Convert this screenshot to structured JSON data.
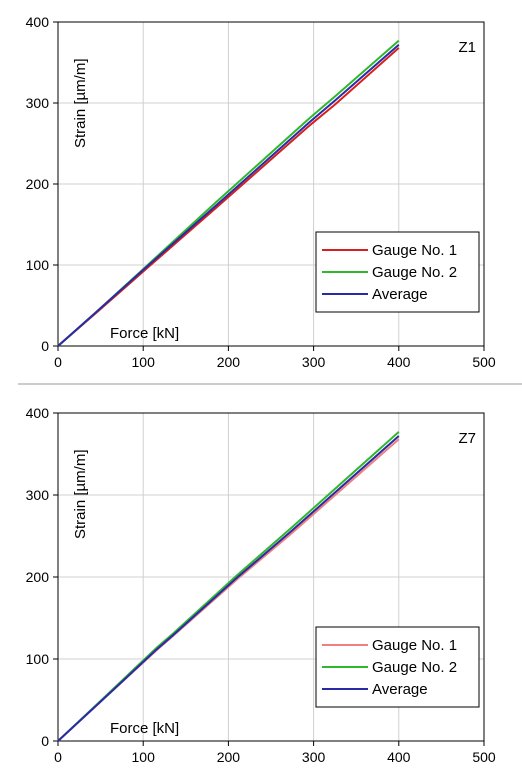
{
  "chart_data": [
    {
      "type": "line",
      "panel_label": "Z1",
      "xlabel": "Force [kN]",
      "ylabel": "Strain [µm/m]",
      "xlim": [
        0,
        500
      ],
      "ylim": [
        0,
        400
      ],
      "xticks": [
        "0",
        "100",
        "200",
        "300",
        "400",
        "500"
      ],
      "yticks": [
        "0",
        "100",
        "200",
        "300",
        "400"
      ],
      "grid": true,
      "legend_position": "bottom-right",
      "series": [
        {
          "name": "Gauge No. 1",
          "color": "#d62020",
          "x": [
            0,
            45,
            100,
            185,
            295,
            325,
            400
          ],
          "y": [
            0,
            41,
            92,
            170,
            272,
            298,
            368
          ]
        },
        {
          "name": "Gauge No. 2",
          "color": "#2db82d",
          "x": [
            0,
            45,
            100,
            185,
            295,
            325,
            400
          ],
          "y": [
            0,
            42,
            95,
            177,
            281,
            308,
            377
          ]
        },
        {
          "name": "Average",
          "color": "#2a2aa8",
          "x": [
            0,
            45,
            100,
            185,
            295,
            325,
            400
          ],
          "y": [
            0,
            42,
            94,
            173,
            276,
            303,
            372
          ]
        }
      ]
    },
    {
      "type": "line",
      "panel_label": "Z7",
      "xlabel": "Force [kN]",
      "ylabel": "Strain [µm/m]",
      "xlim": [
        0,
        500
      ],
      "ylim": [
        0,
        400
      ],
      "xticks": [
        "0",
        "100",
        "200",
        "300",
        "400",
        "500"
      ],
      "yticks": [
        "0",
        "100",
        "200",
        "300",
        "400"
      ],
      "grid": true,
      "legend_position": "bottom-right",
      "series": [
        {
          "name": "Gauge No. 1",
          "color": "#f08080",
          "x": [
            0,
            50,
            115,
            135,
            210,
            275,
            400
          ],
          "y": [
            0,
            48,
            110,
            128,
            197,
            254,
            368
          ]
        },
        {
          "name": "Gauge No. 2",
          "color": "#2db82d",
          "x": [
            0,
            50,
            115,
            135,
            210,
            275,
            400
          ],
          "y": [
            0,
            49,
            113,
            131,
            202,
            261,
            377
          ]
        },
        {
          "name": "Average",
          "color": "#2a2aa8",
          "x": [
            0,
            50,
            115,
            135,
            210,
            275,
            400
          ],
          "y": [
            0,
            48,
            111,
            129,
            199,
            257,
            372
          ]
        }
      ]
    }
  ]
}
